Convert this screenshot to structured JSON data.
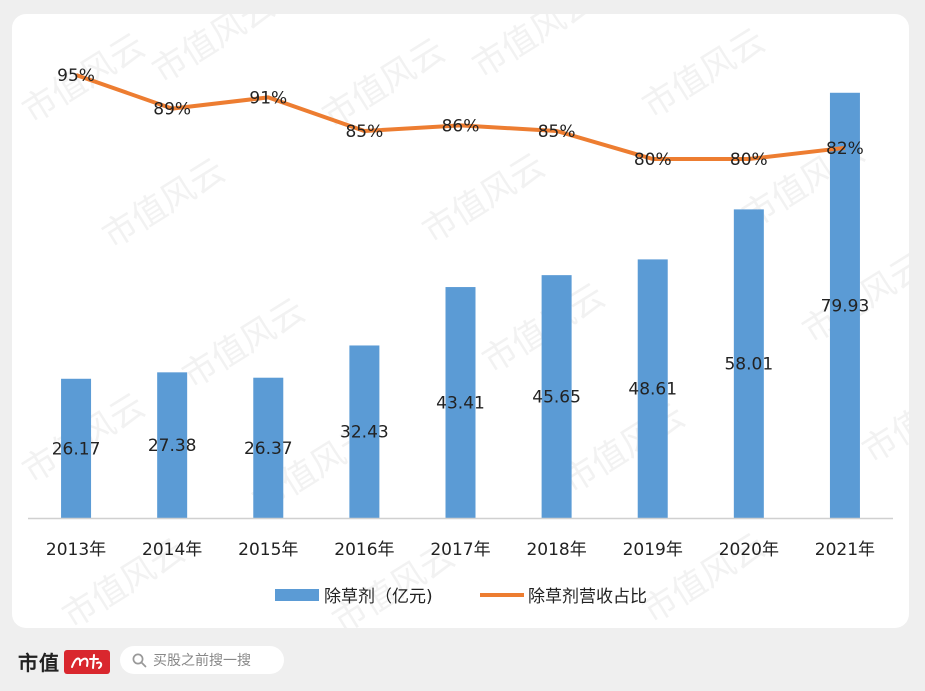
{
  "chart_data": {
    "type": "bar",
    "categories": [
      "2013年",
      "2014年",
      "2015年",
      "2016年",
      "2017年",
      "2018年",
      "2019年",
      "2020年",
      "2021年"
    ],
    "series": [
      {
        "name": "除草剂（亿元)",
        "type": "bar",
        "color": "#5b9bd5",
        "values": [
          26.17,
          27.38,
          26.37,
          32.43,
          43.41,
          45.65,
          48.61,
          58.01,
          79.93
        ],
        "labels": [
          "26.17",
          "27.38",
          "26.37",
          "32.43",
          "43.41",
          "45.65",
          "48.61",
          "58.01",
          "79.93"
        ]
      },
      {
        "name": "除草剂营收占比",
        "type": "line",
        "color": "#ed7d31",
        "values": [
          95,
          89,
          91,
          85,
          86,
          85,
          80,
          80,
          82
        ],
        "labels": [
          "95%",
          "89%",
          "91%",
          "85%",
          "86%",
          "85%",
          "80%",
          "80%",
          "82%"
        ]
      }
    ],
    "grid": false,
    "legend": "bottom"
  },
  "watermark": "市值风云",
  "footer": {
    "brand": "市值",
    "search_placeholder": "买股之前搜一搜"
  }
}
